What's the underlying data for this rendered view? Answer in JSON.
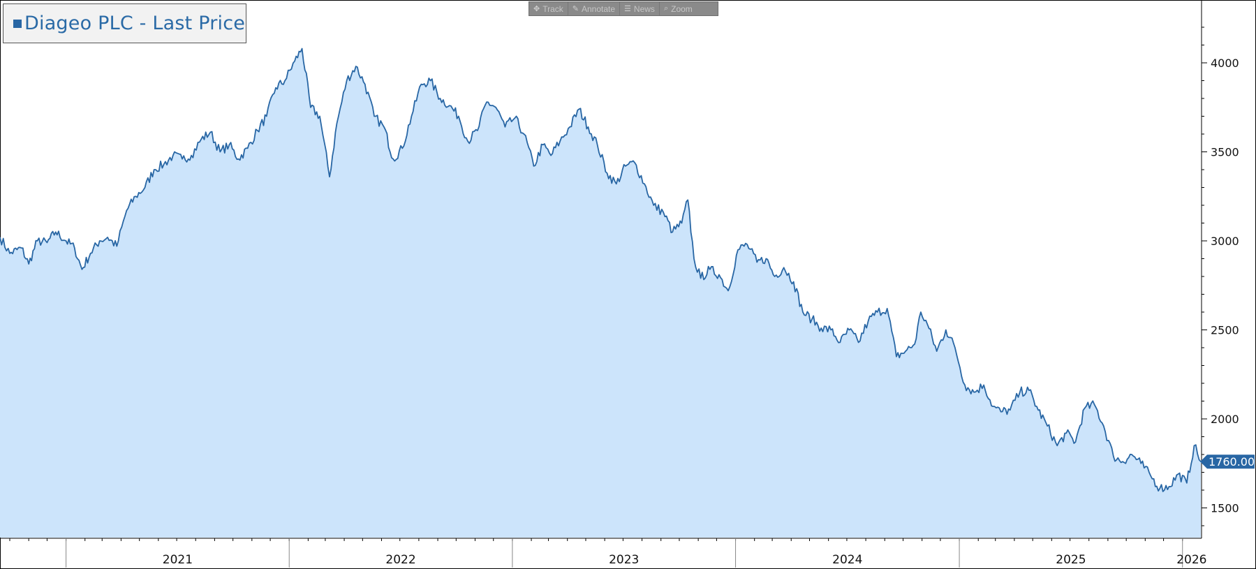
{
  "toolbar": {
    "items": [
      {
        "label": "Track",
        "icon": "crosshair-icon"
      },
      {
        "label": "Annotate",
        "icon": "pencil-icon"
      },
      {
        "label": "News",
        "icon": "news-icon"
      },
      {
        "label": "Zoom",
        "icon": "magnifier-icon"
      }
    ]
  },
  "legend": {
    "label": "Diageo PLC - Last Price",
    "color": "#2866a4"
  },
  "last_price_label": "1760.00",
  "colors": {
    "line": "#2866a4",
    "fill": "#cce4fb",
    "tag": "#2866a4"
  },
  "chart_data": {
    "type": "area",
    "series": [
      {
        "name": "Diageo PLC - Last Price"
      }
    ],
    "x_start": "2020-09-15",
    "x_end": "2026-01-31",
    "ylim": [
      1320,
      4330
    ],
    "yticks": [
      1500,
      2000,
      2500,
      3000,
      3500,
      4000
    ],
    "xtick_labels": [
      "2021",
      "2022",
      "2023",
      "2024",
      "2025",
      "2026"
    ],
    "last_value": 1760.0,
    "grid": false,
    "legend_position": "top-left",
    "points": [
      [
        "2020-09-15",
        3020
      ],
      [
        "2020-10-01",
        2930
      ],
      [
        "2020-10-20",
        2960
      ],
      [
        "2020-11-01",
        2870
      ],
      [
        "2020-11-15",
        3000
      ],
      [
        "2020-12-01",
        2990
      ],
      [
        "2020-12-15",
        3050
      ],
      [
        "2021-01-01",
        3000
      ],
      [
        "2021-01-15",
        2960
      ],
      [
        "2021-01-27",
        2840
      ],
      [
        "2021-02-10",
        2930
      ],
      [
        "2021-02-25",
        3000
      ],
      [
        "2021-03-10",
        3020
      ],
      [
        "2021-03-25",
        2970
      ],
      [
        "2021-04-10",
        3170
      ],
      [
        "2021-04-25",
        3250
      ],
      [
        "2021-05-10",
        3300
      ],
      [
        "2021-05-25",
        3400
      ],
      [
        "2021-06-10",
        3430
      ],
      [
        "2021-06-25",
        3480
      ],
      [
        "2021-07-10",
        3460
      ],
      [
        "2021-07-25",
        3480
      ],
      [
        "2021-08-10",
        3570
      ],
      [
        "2021-08-25",
        3610
      ],
      [
        "2021-09-10",
        3500
      ],
      [
        "2021-09-25",
        3540
      ],
      [
        "2021-10-10",
        3460
      ],
      [
        "2021-10-25",
        3520
      ],
      [
        "2021-11-10",
        3620
      ],
      [
        "2021-11-25",
        3700
      ],
      [
        "2021-12-10",
        3860
      ],
      [
        "2021-12-25",
        3900
      ],
      [
        "2022-01-10",
        4010
      ],
      [
        "2022-01-22",
        4080
      ],
      [
        "2022-02-05",
        3750
      ],
      [
        "2022-02-20",
        3700
      ],
      [
        "2022-03-08",
        3360
      ],
      [
        "2022-03-20",
        3660
      ],
      [
        "2022-04-05",
        3900
      ],
      [
        "2022-04-20",
        3980
      ],
      [
        "2022-05-05",
        3880
      ],
      [
        "2022-05-20",
        3700
      ],
      [
        "2022-06-05",
        3640
      ],
      [
        "2022-06-20",
        3460
      ],
      [
        "2022-07-05",
        3520
      ],
      [
        "2022-07-20",
        3700
      ],
      [
        "2022-08-05",
        3880
      ],
      [
        "2022-08-20",
        3900
      ],
      [
        "2022-09-05",
        3800
      ],
      [
        "2022-09-20",
        3760
      ],
      [
        "2022-10-05",
        3700
      ],
      [
        "2022-10-20",
        3560
      ],
      [
        "2022-11-05",
        3620
      ],
      [
        "2022-11-20",
        3780
      ],
      [
        "2022-12-05",
        3750
      ],
      [
        "2022-12-20",
        3640
      ],
      [
        "2023-01-05",
        3690
      ],
      [
        "2023-01-20",
        3600
      ],
      [
        "2023-02-05",
        3420
      ],
      [
        "2023-02-20",
        3540
      ],
      [
        "2023-03-05",
        3480
      ],
      [
        "2023-03-20",
        3560
      ],
      [
        "2023-04-05",
        3640
      ],
      [
        "2023-04-20",
        3740
      ],
      [
        "2023-05-05",
        3640
      ],
      [
        "2023-05-20",
        3540
      ],
      [
        "2023-06-05",
        3380
      ],
      [
        "2023-06-20",
        3320
      ],
      [
        "2023-07-05",
        3420
      ],
      [
        "2023-07-20",
        3440
      ],
      [
        "2023-08-05",
        3320
      ],
      [
        "2023-08-20",
        3200
      ],
      [
        "2023-09-05",
        3160
      ],
      [
        "2023-09-20",
        3050
      ],
      [
        "2023-10-05",
        3100
      ],
      [
        "2023-10-15",
        3230
      ],
      [
        "2023-10-25",
        2900
      ],
      [
        "2023-11-05",
        2790
      ],
      [
        "2023-11-20",
        2840
      ],
      [
        "2023-12-05",
        2810
      ],
      [
        "2023-12-20",
        2720
      ],
      [
        "2024-01-05",
        2950
      ],
      [
        "2024-01-20",
        2980
      ],
      [
        "2024-02-05",
        2880
      ],
      [
        "2024-02-20",
        2900
      ],
      [
        "2024-03-05",
        2800
      ],
      [
        "2024-03-20",
        2850
      ],
      [
        "2024-04-05",
        2770
      ],
      [
        "2024-04-20",
        2600
      ],
      [
        "2024-05-05",
        2560
      ],
      [
        "2024-05-20",
        2510
      ],
      [
        "2024-06-05",
        2500
      ],
      [
        "2024-06-20",
        2430
      ],
      [
        "2024-07-05",
        2500
      ],
      [
        "2024-07-20",
        2430
      ],
      [
        "2024-08-05",
        2550
      ],
      [
        "2024-08-20",
        2600
      ],
      [
        "2024-09-05",
        2620
      ],
      [
        "2024-09-20",
        2350
      ],
      [
        "2024-10-05",
        2380
      ],
      [
        "2024-10-20",
        2420
      ],
      [
        "2024-10-30",
        2600
      ],
      [
        "2024-11-10",
        2530
      ],
      [
        "2024-11-25",
        2380
      ],
      [
        "2024-12-10",
        2500
      ],
      [
        "2024-12-25",
        2400
      ],
      [
        "2025-01-10",
        2190
      ],
      [
        "2025-01-25",
        2150
      ],
      [
        "2025-02-10",
        2190
      ],
      [
        "2025-02-25",
        2070
      ],
      [
        "2025-03-10",
        2040
      ],
      [
        "2025-03-25",
        2050
      ],
      [
        "2025-04-10",
        2150
      ],
      [
        "2025-04-25",
        2160
      ],
      [
        "2025-05-10",
        2050
      ],
      [
        "2025-05-25",
        1960
      ],
      [
        "2025-06-10",
        1850
      ],
      [
        "2025-06-25",
        1920
      ],
      [
        "2025-07-10",
        1870
      ],
      [
        "2025-07-25",
        2060
      ],
      [
        "2025-08-10",
        2080
      ],
      [
        "2025-08-25",
        1960
      ],
      [
        "2025-09-10",
        1790
      ],
      [
        "2025-09-25",
        1760
      ],
      [
        "2025-10-10",
        1800
      ],
      [
        "2025-10-25",
        1750
      ],
      [
        "2025-11-10",
        1680
      ],
      [
        "2025-11-25",
        1610
      ],
      [
        "2025-12-10",
        1620
      ],
      [
        "2025-12-25",
        1690
      ],
      [
        "2026-01-08",
        1640
      ],
      [
        "2026-01-20",
        1850
      ],
      [
        "2026-01-31",
        1760
      ]
    ]
  }
}
